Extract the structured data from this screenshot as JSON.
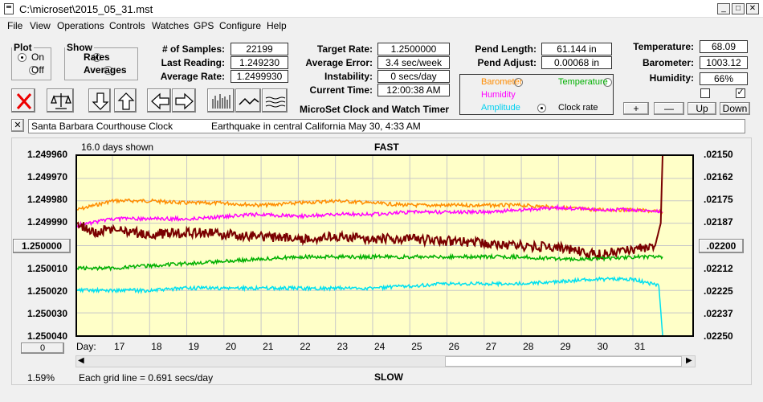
{
  "title": "C:\\microset\\2015_05_31.mst",
  "menu": [
    "File",
    "View",
    "Operations",
    "Controls",
    "Watches",
    "GPS",
    "Configure",
    "Help"
  ],
  "plot": {
    "legend": "Plot",
    "on": "On",
    "off": "Off",
    "selected": "On"
  },
  "show": {
    "legend": "Show",
    "rates": "Rates",
    "averages": "Averages",
    "selected": "Rates"
  },
  "stats": {
    "samples_label": "# of Samples:",
    "samples": "22199",
    "last_label": "Last Reading:",
    "last": "1.249230",
    "avg_label": "Average Rate:",
    "avg": "1.2499930"
  },
  "rates": {
    "target_label": "Target Rate:",
    "target": "1.2500000",
    "err_label": "Average Error:",
    "err": "3.4 sec/week",
    "inst_label": "Instability:",
    "inst": "0 secs/day",
    "time_label": "Current Time:",
    "time": "12:00:38 AM"
  },
  "pend": {
    "len_label": "Pend Length:",
    "len": "61.144 in",
    "adj_label": "Pend Adjust:",
    "adj": "0.00068 in"
  },
  "env": {
    "temp_label": "Temperature:",
    "temp": "68.09",
    "baro_label": "Barometer:",
    "baro": "1003.12",
    "hum_label": "Humidity:",
    "hum": "66%"
  },
  "sensors": {
    "barometer": "Barometer",
    "temperature": "Temperature",
    "humidity": "Humidity",
    "amplitude": "Amplitude",
    "clockrate": "Clock rate",
    "selected": "Amplitude"
  },
  "timer_title": "MicroSet Clock and Watch Timer",
  "nav": {
    "plus": "+",
    "minus": "—",
    "up": "Up",
    "down": "Down"
  },
  "note": {
    "clock": "Santa Barbara Courthouse Clock",
    "event": "Earthquake in central California May 30, 4:33 AM"
  },
  "chart_data": {
    "type": "line",
    "days_shown": "16.0 days shown",
    "top_label": "FAST",
    "bottom_label": "SLOW",
    "left_ticks": [
      "1.249960",
      "1.249970",
      "1.249980",
      "1.249990",
      "1.250000",
      "1.250010",
      "1.250020",
      "1.250030",
      "1.250040"
    ],
    "center_left": "1.250000",
    "right_ticks": [
      ".02150",
      ".02162",
      ".02175",
      ".02187",
      ".02200",
      ".02212",
      ".02225",
      ".02237",
      ".02250"
    ],
    "x_label": "Day:",
    "x_ticks": [
      "17",
      "18",
      "19",
      "20",
      "21",
      "22",
      "23",
      "24",
      "25",
      "26",
      "27",
      "28",
      "29",
      "30",
      "31"
    ],
    "x_range": [
      16.05,
      32.6
    ],
    "ylim": [
      1.24996,
      1.25004
    ],
    "series": [
      {
        "color": "#ff8c00",
        "values": [
          [
            16.05,
            1.249984
          ],
          [
            17,
            1.24998
          ],
          [
            18,
            1.24998
          ],
          [
            19,
            1.249981
          ],
          [
            20,
            1.249981
          ],
          [
            21,
            1.249982
          ],
          [
            22,
            1.249981
          ],
          [
            23,
            1.24998
          ],
          [
            24,
            1.249981
          ],
          [
            25,
            1.249982
          ],
          [
            26,
            1.249982
          ],
          [
            27,
            1.249982
          ],
          [
            28,
            1.249982
          ],
          [
            29,
            1.249983
          ],
          [
            30,
            1.249984
          ],
          [
            31,
            1.249984
          ],
          [
            31.8,
            1.249985
          ]
        ]
      },
      {
        "color": "#ff00ff",
        "values": [
          [
            16.05,
            1.249991
          ],
          [
            17,
            1.249988
          ],
          [
            18,
            1.249988
          ],
          [
            19,
            1.249988
          ],
          [
            20,
            1.249987
          ],
          [
            21,
            1.249986
          ],
          [
            22,
            1.249987
          ],
          [
            23,
            1.249986
          ],
          [
            24,
            1.249986
          ],
          [
            25,
            1.249985
          ],
          [
            26,
            1.249985
          ],
          [
            27,
            1.249985
          ],
          [
            28,
            1.249984
          ],
          [
            29,
            1.249983
          ],
          [
            30,
            1.249984
          ],
          [
            31,
            1.249984
          ],
          [
            31.8,
            1.249985
          ]
        ]
      },
      {
        "color": "#7a0000",
        "values": [
          [
            16.05,
            1.24999
          ],
          [
            16.5,
            1.249994
          ],
          [
            17,
            1.249993
          ],
          [
            18,
            1.249995
          ],
          [
            19,
            1.249994
          ],
          [
            20,
            1.249995
          ],
          [
            21,
            1.249996
          ],
          [
            22,
            1.249997
          ],
          [
            23,
            1.249996
          ],
          [
            24,
            1.249997
          ],
          [
            25,
            1.249997
          ],
          [
            26,
            1.249998
          ],
          [
            27,
            1.249999
          ],
          [
            28,
            1.25
          ],
          [
            29,
            1.250001
          ],
          [
            30,
            1.250004
          ],
          [
            31,
            1.250002
          ],
          [
            31.6,
            1.25
          ],
          [
            31.75,
            1.24999
          ],
          [
            31.8,
            1.24996
          ]
        ]
      },
      {
        "color": "#00b000",
        "values": [
          [
            16.05,
            1.25001
          ],
          [
            17,
            1.25001
          ],
          [
            18,
            1.250009
          ],
          [
            19,
            1.250008
          ],
          [
            20,
            1.250007
          ],
          [
            21,
            1.250006
          ],
          [
            22,
            1.250005
          ],
          [
            23,
            1.250005
          ],
          [
            24,
            1.250005
          ],
          [
            25,
            1.250005
          ],
          [
            26,
            1.250005
          ],
          [
            27,
            1.250005
          ],
          [
            28,
            1.250005
          ],
          [
            29,
            1.250006
          ],
          [
            30,
            1.250006
          ],
          [
            31,
            1.250005
          ],
          [
            31.8,
            1.250005
          ]
        ]
      },
      {
        "color": "#00e0f0",
        "values": [
          [
            16.05,
            1.25002
          ],
          [
            17,
            1.25002
          ],
          [
            18,
            1.25002
          ],
          [
            19,
            1.250019
          ],
          [
            20,
            1.250019
          ],
          [
            21,
            1.250019
          ],
          [
            22,
            1.250019
          ],
          [
            23,
            1.250019
          ],
          [
            24,
            1.250019
          ],
          [
            25,
            1.250018
          ],
          [
            26,
            1.250017
          ],
          [
            27,
            1.250017
          ],
          [
            28,
            1.250017
          ],
          [
            29,
            1.250016
          ],
          [
            30,
            1.250015
          ],
          [
            31,
            1.250015
          ],
          [
            31.7,
            1.250018
          ],
          [
            31.8,
            1.25004
          ]
        ]
      }
    ]
  },
  "footer": {
    "percent": "1.59%",
    "grid_note": "Each grid line = 0.691 secs/day",
    "zero_btn": "0",
    "right_val": ".02200"
  }
}
